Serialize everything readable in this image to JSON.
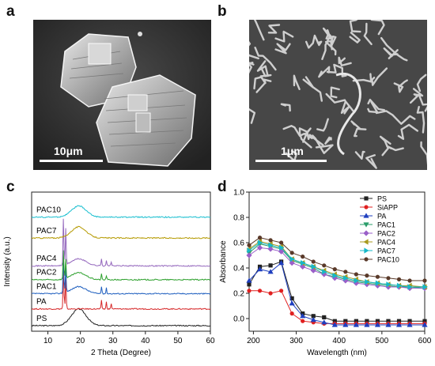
{
  "panels": {
    "a": {
      "letter": "a",
      "scale_label": "10μm",
      "kind": "sem-image-crystals"
    },
    "b": {
      "letter": "b",
      "scale_label": "1μm",
      "kind": "sem-image-fibers"
    },
    "c": {
      "letter": "c"
    },
    "d": {
      "letter": "d"
    }
  },
  "chart_data": [
    {
      "type": "line",
      "panel": "c",
      "xlabel": "2 Theta (Degree)",
      "ylabel": "Intensity (a.u.)",
      "xlim": [
        5,
        60
      ],
      "xticks": [
        10,
        20,
        30,
        40,
        50,
        60
      ],
      "series": [
        {
          "name": "PS",
          "color": "#222222",
          "baseline": 0.4,
          "hump": 1.2,
          "peaks": []
        },
        {
          "name": "PA",
          "color": "#d62728",
          "baseline": 1.6,
          "hump": 0.0,
          "peaks": [
            [
              14.8,
              3.2
            ],
            [
              15.5,
              2.4
            ],
            [
              26.5,
              0.6
            ],
            [
              28.0,
              0.5
            ],
            [
              29.5,
              0.4
            ]
          ]
        },
        {
          "name": "PAC1",
          "color": "#1f5fbf",
          "baseline": 2.7,
          "hump": 0.5,
          "peaks": [
            [
              14.8,
              2.8
            ],
            [
              15.5,
              1.8
            ],
            [
              26.5,
              0.5
            ],
            [
              28.0,
              0.4
            ]
          ]
        },
        {
          "name": "PAC2",
          "color": "#2ca02c",
          "baseline": 3.7,
          "hump": 0.5,
          "peaks": [
            [
              14.8,
              2.2
            ],
            [
              15.5,
              1.4
            ],
            [
              26.5,
              0.4
            ],
            [
              28.0,
              0.3
            ]
          ]
        },
        {
          "name": "PAC4",
          "color": "#9467bd",
          "baseline": 4.7,
          "hump": 0.5,
          "peaks": [
            [
              14.8,
              3.6
            ],
            [
              15.5,
              2.6
            ],
            [
              26.5,
              0.5
            ],
            [
              28.0,
              0.4
            ],
            [
              29.5,
              0.3
            ]
          ]
        },
        {
          "name": "PAC7",
          "color": "#b59a00",
          "baseline": 6.7,
          "hump": 0.8,
          "peaks": []
        },
        {
          "name": "PAC10",
          "color": "#17becf",
          "baseline": 8.2,
          "hump": 0.8,
          "peaks": []
        }
      ]
    },
    {
      "type": "line",
      "panel": "d",
      "xlabel": "Wavelength (nm)",
      "ylabel": "Absorbance",
      "xlim": [
        190,
        600
      ],
      "ylim": [
        -0.1,
        1.0
      ],
      "xticks": [
        200,
        300,
        400,
        500,
        600
      ],
      "yticks": [
        0.0,
        0.2,
        0.4,
        0.6,
        0.8,
        1.0
      ],
      "x": [
        190,
        215,
        240,
        265,
        290,
        315,
        340,
        365,
        390,
        415,
        440,
        465,
        490,
        515,
        540,
        565,
        600
      ],
      "series": [
        {
          "name": "PS",
          "color": "#222222",
          "marker": "square",
          "values": [
            0.27,
            0.41,
            0.42,
            0.45,
            0.16,
            0.04,
            0.02,
            0.01,
            -0.02,
            -0.02,
            -0.02,
            -0.02,
            -0.02,
            -0.02,
            -0.02,
            -0.02,
            -0.02
          ]
        },
        {
          "name": "SiAPP",
          "color": "#e02020",
          "marker": "circle",
          "values": [
            0.22,
            0.22,
            0.2,
            0.22,
            0.04,
            -0.02,
            -0.03,
            -0.04,
            -0.04,
            -0.04,
            -0.04,
            -0.04,
            -0.04,
            -0.04,
            -0.04,
            -0.04,
            -0.04
          ]
        },
        {
          "name": "PA",
          "color": "#1f3fbf",
          "marker": "triangle",
          "values": [
            0.3,
            0.39,
            0.37,
            0.44,
            0.12,
            0.02,
            -0.01,
            -0.03,
            -0.05,
            -0.05,
            -0.05,
            -0.05,
            -0.05,
            -0.05,
            -0.05,
            -0.05,
            -0.05
          ]
        },
        {
          "name": "PAC1",
          "color": "#2a9d6a",
          "marker": "tri-down",
          "values": [
            0.52,
            0.59,
            0.57,
            0.55,
            0.46,
            0.43,
            0.4,
            0.35,
            0.33,
            0.31,
            0.29,
            0.28,
            0.27,
            0.26,
            0.25,
            0.25,
            0.24
          ]
        },
        {
          "name": "PAC2",
          "color": "#9a5fc8",
          "marker": "diamond",
          "values": [
            0.5,
            0.56,
            0.55,
            0.53,
            0.44,
            0.41,
            0.38,
            0.35,
            0.32,
            0.3,
            0.28,
            0.27,
            0.26,
            0.25,
            0.25,
            0.24,
            0.24
          ]
        },
        {
          "name": "PAC4",
          "color": "#a89a20",
          "marker": "tri-left",
          "values": [
            0.55,
            0.61,
            0.59,
            0.57,
            0.47,
            0.44,
            0.41,
            0.38,
            0.35,
            0.33,
            0.31,
            0.29,
            0.28,
            0.27,
            0.26,
            0.26,
            0.25
          ]
        },
        {
          "name": "PAC7",
          "color": "#16b8c8",
          "marker": "tri-right",
          "values": [
            0.54,
            0.6,
            0.58,
            0.56,
            0.47,
            0.44,
            0.41,
            0.37,
            0.34,
            0.32,
            0.3,
            0.29,
            0.28,
            0.27,
            0.26,
            0.25,
            0.25
          ]
        },
        {
          "name": "PAC10",
          "color": "#5a3a2a",
          "marker": "circle",
          "values": [
            0.58,
            0.64,
            0.62,
            0.6,
            0.52,
            0.49,
            0.45,
            0.42,
            0.39,
            0.37,
            0.35,
            0.34,
            0.33,
            0.32,
            0.31,
            0.3,
            0.3
          ]
        }
      ]
    }
  ]
}
